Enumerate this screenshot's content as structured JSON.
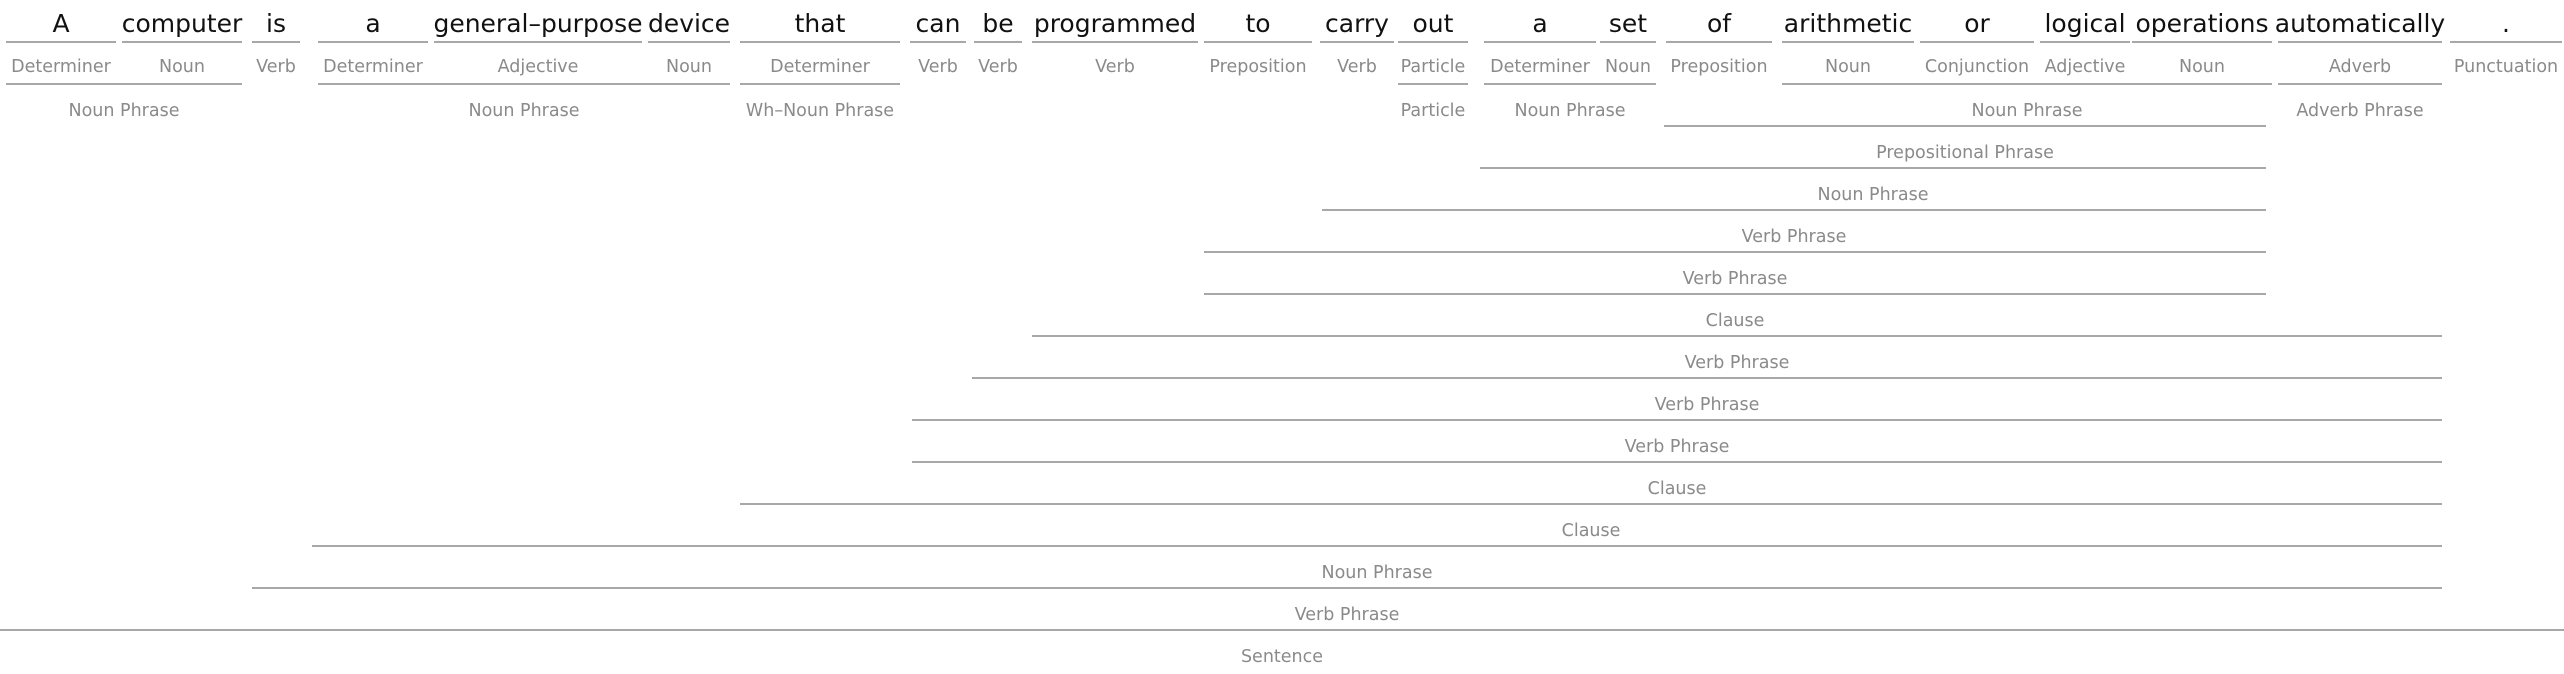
{
  "tree": {
    "words": [
      {
        "text": "A",
        "pos": "Determiner"
      },
      {
        "text": "computer",
        "pos": "Noun"
      },
      {
        "text": "is",
        "pos": "Verb"
      },
      {
        "text": "a",
        "pos": "Determiner"
      },
      {
        "text": "general–purpose",
        "pos": "Adjective"
      },
      {
        "text": "device",
        "pos": "Noun"
      },
      {
        "text": "that",
        "pos": "Determiner"
      },
      {
        "text": "can",
        "pos": "Verb"
      },
      {
        "text": "be",
        "pos": "Verb"
      },
      {
        "text": "programmed",
        "pos": "Verb"
      },
      {
        "text": "to",
        "pos": "Preposition"
      },
      {
        "text": "carry",
        "pos": "Verb"
      },
      {
        "text": "out",
        "pos": "Particle"
      },
      {
        "text": "a",
        "pos": "Determiner"
      },
      {
        "text": "set",
        "pos": "Noun"
      },
      {
        "text": "of",
        "pos": "Preposition"
      },
      {
        "text": "arithmetic",
        "pos": "Noun"
      },
      {
        "text": "or",
        "pos": "Conjunction"
      },
      {
        "text": "logical",
        "pos": "Adjective"
      },
      {
        "text": "operations",
        "pos": "Noun"
      },
      {
        "text": "automatically",
        "pos": "Adverb"
      },
      {
        "text": ".",
        "pos": "Punctuation"
      }
    ],
    "phrases": [
      {
        "label": "Noun Phrase",
        "start": 0,
        "end": 1
      },
      {
        "label": "Noun Phrase",
        "start": 3,
        "end": 5
      },
      {
        "label": "Wh–Noun Phrase",
        "start": 6,
        "end": 6
      },
      {
        "label": "Particle",
        "start": 12,
        "end": 12
      },
      {
        "label": "Noun Phrase",
        "start": 13,
        "end": 14
      },
      {
        "label": "Noun Phrase",
        "start": 16,
        "end": 19
      },
      {
        "label": "Adverb Phrase",
        "start": 20,
        "end": 20
      },
      {
        "label": "Prepositional Phrase",
        "start": 15,
        "end": 19
      },
      {
        "label": "Noun Phrase",
        "start": 13,
        "end": 19
      },
      {
        "label": "Verb Phrase",
        "start": 11,
        "end": 19
      },
      {
        "label": "Verb Phrase",
        "start": 10,
        "end": 19
      },
      {
        "label": "Clause",
        "start": 10,
        "end": 19
      },
      {
        "label": "Verb Phrase",
        "start": 9,
        "end": 20
      },
      {
        "label": "Verb Phrase",
        "start": 8,
        "end": 20
      },
      {
        "label": "Verb Phrase",
        "start": 7,
        "end": 20
      },
      {
        "label": "Clause",
        "start": 7,
        "end": 20
      },
      {
        "label": "Clause",
        "start": 6,
        "end": 20
      },
      {
        "label": "Noun Phrase",
        "start": 3,
        "end": 20
      },
      {
        "label": "Verb Phrase",
        "start": 2,
        "end": 20
      },
      {
        "label": "Sentence",
        "start": 0,
        "end": 21
      }
    ]
  }
}
